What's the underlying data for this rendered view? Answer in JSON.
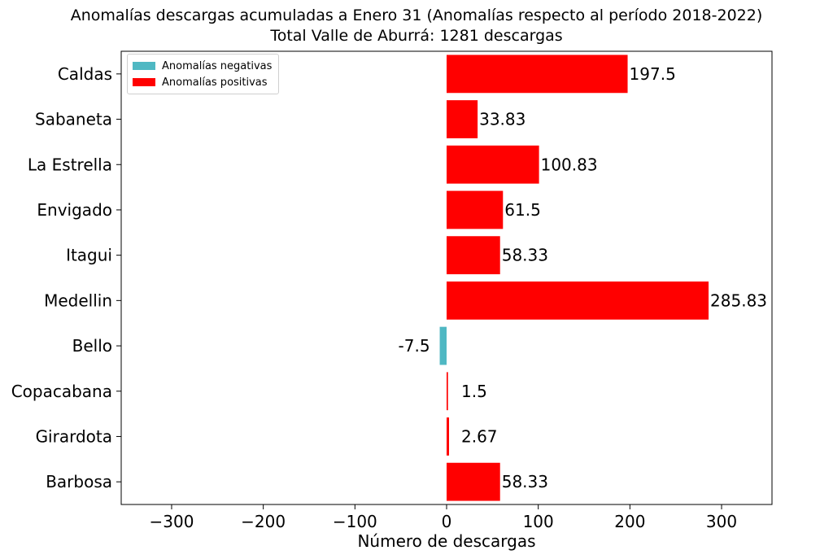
{
  "title_line1": "Anomalías descargas acumuladas a Enero 31 (Anomalías respecto al período 2018-2022)",
  "title_line2": "Total Valle de Aburrá: 1281 descargas",
  "legend": {
    "negative_label": "Anomalías negativas",
    "positive_label": "Anomalías positivas",
    "negative_color": "#4fb8c3",
    "positive_color": "#ff0000"
  },
  "chart_data": {
    "type": "bar",
    "orientation": "horizontal",
    "xlabel": "Número de descargas",
    "ylabel": "",
    "xlim": [
      -355,
      355
    ],
    "xticks": [
      -300,
      -200,
      -100,
      0,
      100,
      200,
      300
    ],
    "xtick_labels": [
      "−300",
      "−200",
      "−100",
      "0",
      "100",
      "200",
      "300"
    ],
    "categories": [
      "Caldas",
      "Sabaneta",
      "La Estrella",
      "Envigado",
      "Itagui",
      "Medellin",
      "Bello",
      "Copacabana",
      "Girardota",
      "Barbosa"
    ],
    "values": [
      197.5,
      33.83,
      100.83,
      61.5,
      58.33,
      285.83,
      -7.5,
      1.5,
      2.67,
      58.33
    ],
    "data_labels": [
      "197.5",
      "33.83",
      "100.83",
      "61.5",
      "58.33",
      "285.83",
      "-7.5",
      "1.5",
      "2.67",
      "58.33"
    ],
    "grid": false,
    "legend_position": "upper-left"
  }
}
